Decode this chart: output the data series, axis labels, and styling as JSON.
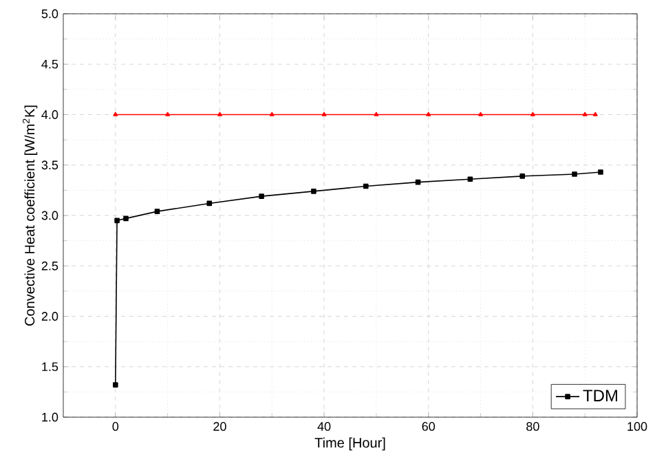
{
  "chart_data": {
    "type": "line",
    "xlabel": "Time [Hour]",
    "ylabel": "Convective Heat coefficient [W/m$^{2}$K]",
    "xlim": [
      -10,
      100
    ],
    "ylim": [
      1.0,
      5.0
    ],
    "xticks": [
      0,
      20,
      40,
      60,
      80,
      100
    ],
    "yticks": [
      {
        "value": 1.0,
        "label": "1.0"
      },
      {
        "value": 1.5,
        "label": "1.5"
      },
      {
        "value": 2.0,
        "label": "2.0"
      },
      {
        "value": 2.5,
        "label": "2.5"
      },
      {
        "value": 3.0,
        "label": "3.0"
      },
      {
        "value": 3.5,
        "label": "3.5"
      },
      {
        "value": 4.0,
        "label": "4.0"
      },
      {
        "value": 4.5,
        "label": "4.5"
      },
      {
        "value": 5.0,
        "label": "5.0"
      }
    ],
    "grid": true,
    "legend": "bottom right",
    "line_style": "solid",
    "series": [
      {
        "name": "TDM",
        "color": "#000000",
        "marker": "square",
        "x": [
          0,
          0.3,
          2,
          8,
          18,
          28,
          38,
          48,
          58,
          68,
          78,
          88,
          93
        ],
        "values": [
          1.32,
          2.95,
          2.97,
          3.04,
          3.12,
          3.19,
          3.24,
          3.29,
          3.33,
          3.36,
          3.39,
          3.41,
          3.43
        ]
      },
      {
        "color": "#ff0000",
        "marker": "triangle",
        "x": [
          0,
          10,
          20,
          30,
          40,
          50,
          60,
          70,
          80,
          90,
          92
        ],
        "values": [
          4.0,
          4.0,
          4.0,
          4.0,
          4.0,
          4.0,
          4.0,
          4.0,
          4.0,
          4.0,
          4.0
        ]
      }
    ]
  }
}
